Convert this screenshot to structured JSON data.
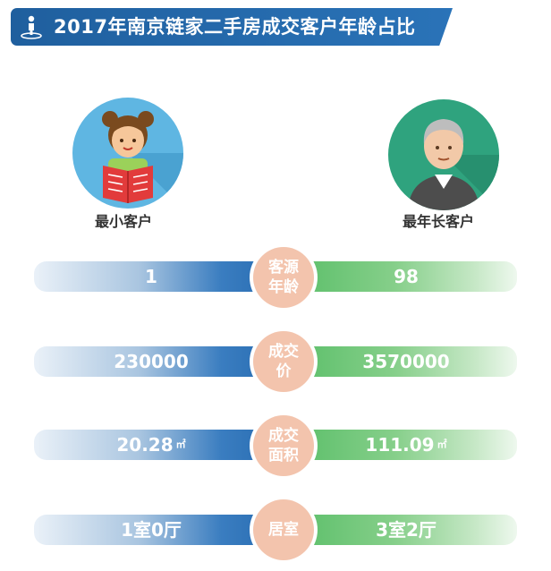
{
  "title": "2017年南京链家二手房成交客户年龄占比",
  "colors": {
    "banner": "#2a73b8",
    "left_bar": "#2b6fb4",
    "right_bar": "#5cbf6a",
    "badge": "#f3c4ad"
  },
  "customers": {
    "youngest_label": "最小客户",
    "oldest_label": "最年长客户"
  },
  "rows": [
    {
      "category": "客源年龄",
      "youngest": "1",
      "oldest": "98",
      "unit": ""
    },
    {
      "category": "成交价",
      "youngest": "230000",
      "oldest": "3570000",
      "unit": ""
    },
    {
      "category": "成交面积",
      "youngest": "20.28",
      "oldest": "111.09",
      "unit": "㎡"
    },
    {
      "category": "居室",
      "youngest": "1室0厅",
      "oldest": "3室2厅",
      "unit": ""
    }
  ]
}
